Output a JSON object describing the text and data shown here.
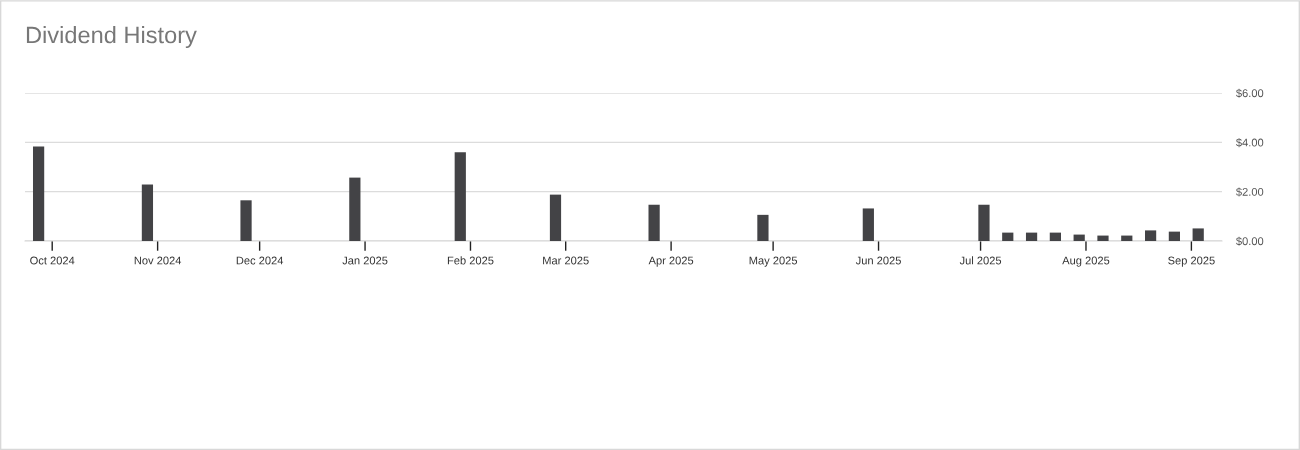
{
  "chart_data": {
    "type": "bar",
    "title": "Dividend History",
    "x": [
      "2024-09-27",
      "2024-10-29",
      "2024-11-27",
      "2024-12-29",
      "2025-01-29",
      "2025-02-26",
      "2025-03-27",
      "2025-04-28",
      "2025-05-29",
      "2025-07-02",
      "2025-07-09",
      "2025-07-16",
      "2025-07-23",
      "2025-07-30",
      "2025-08-06",
      "2025-08-13",
      "2025-08-20",
      "2025-08-27",
      "2025-09-03"
    ],
    "values": [
      3.83,
      2.29,
      1.65,
      2.57,
      3.6,
      1.88,
      1.47,
      1.06,
      1.32,
      1.47,
      0.34,
      0.34,
      0.34,
      0.26,
      0.22,
      0.22,
      0.43,
      0.38,
      0.51
    ],
    "color": "#434346",
    "xlim": [
      "2024-09-23",
      "2025-09-10"
    ],
    "xticks": [
      {
        "value": "2024-10-01",
        "label": "Oct 2024"
      },
      {
        "value": "2024-11-01",
        "label": "Nov 2024"
      },
      {
        "value": "2024-12-01",
        "label": "Dec 2024"
      },
      {
        "value": "2025-01-01",
        "label": "Jan 2025"
      },
      {
        "value": "2025-02-01",
        "label": "Feb 2025"
      },
      {
        "value": "2025-03-01",
        "label": "Mar 2025"
      },
      {
        "value": "2025-04-01",
        "label": "Apr 2025"
      },
      {
        "value": "2025-05-01",
        "label": "May 2025"
      },
      {
        "value": "2025-06-01",
        "label": "Jun 2025"
      },
      {
        "value": "2025-07-01",
        "label": "Jul 2025"
      },
      {
        "value": "2025-08-01",
        "label": "Aug 2025"
      },
      {
        "value": "2025-09-01",
        "label": "Sep 2025"
      }
    ],
    "ylim": [
      0,
      6
    ],
    "yticks": [
      {
        "value": 0,
        "label": "$0.00"
      },
      {
        "value": 2,
        "label": "$2.00"
      },
      {
        "value": 4,
        "label": "$4.00"
      },
      {
        "value": 6,
        "label": "$6.00"
      }
    ],
    "grid": "y"
  }
}
